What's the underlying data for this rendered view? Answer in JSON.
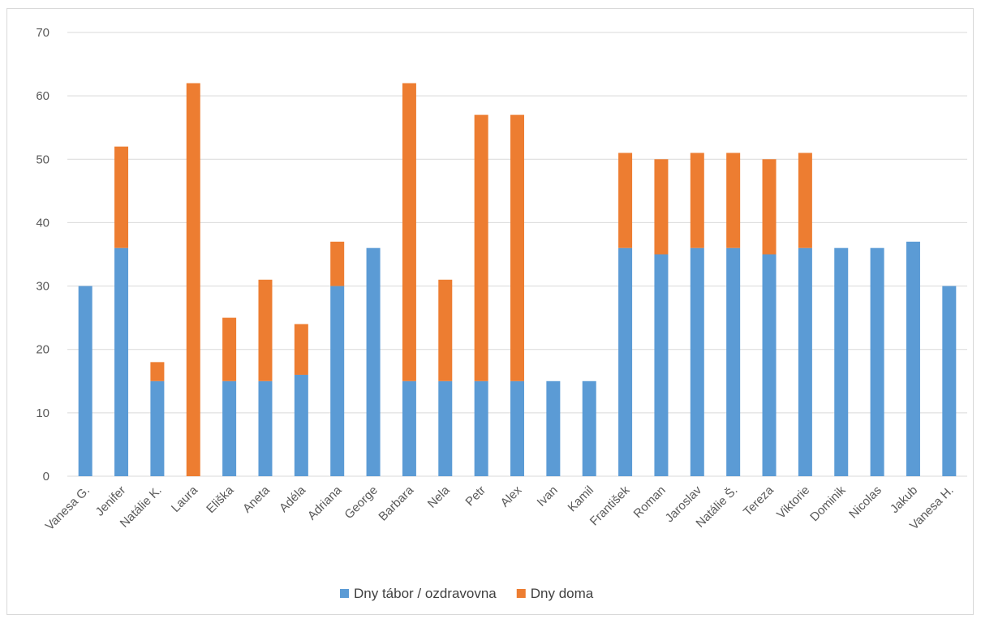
{
  "chart_data": {
    "type": "bar",
    "stacked": true,
    "categories": [
      "Vanesa G.",
      "Jenifer",
      "Natálie K.",
      "Laura",
      "Eliška",
      "Aneta",
      "Adéla",
      "Adriana",
      "George",
      "Barbara",
      "Nela",
      "Petr",
      "Alex",
      "Ivan",
      "Kamil",
      "František",
      "Roman",
      "Jaroslav",
      "Natálie Š.",
      "Tereza",
      "Viktorie",
      "Dominik",
      "Nicolas",
      "Jakub",
      "Vanesa H."
    ],
    "series": [
      {
        "name": "Dny tábor / ozdravovna",
        "color": "#5B9BD5",
        "values": [
          30,
          36,
          15,
          0,
          15,
          15,
          16,
          30,
          36,
          15,
          15,
          15,
          15,
          15,
          15,
          36,
          35,
          36,
          36,
          35,
          36,
          36,
          36,
          37,
          30
        ]
      },
      {
        "name": "Dny doma",
        "color": "#ED7D31",
        "values": [
          0,
          16,
          3,
          62,
          10,
          16,
          8,
          7,
          0,
          47,
          16,
          42,
          42,
          0,
          0,
          15,
          15,
          15,
          15,
          15,
          15,
          0,
          0,
          0,
          0
        ]
      }
    ],
    "y_ticks": [
      0,
      10,
      20,
      30,
      40,
      50,
      60,
      70
    ],
    "ylim": [
      0,
      70
    ],
    "grid": true,
    "gridline_color": "#d9d9d9",
    "legend_position": "bottom"
  }
}
